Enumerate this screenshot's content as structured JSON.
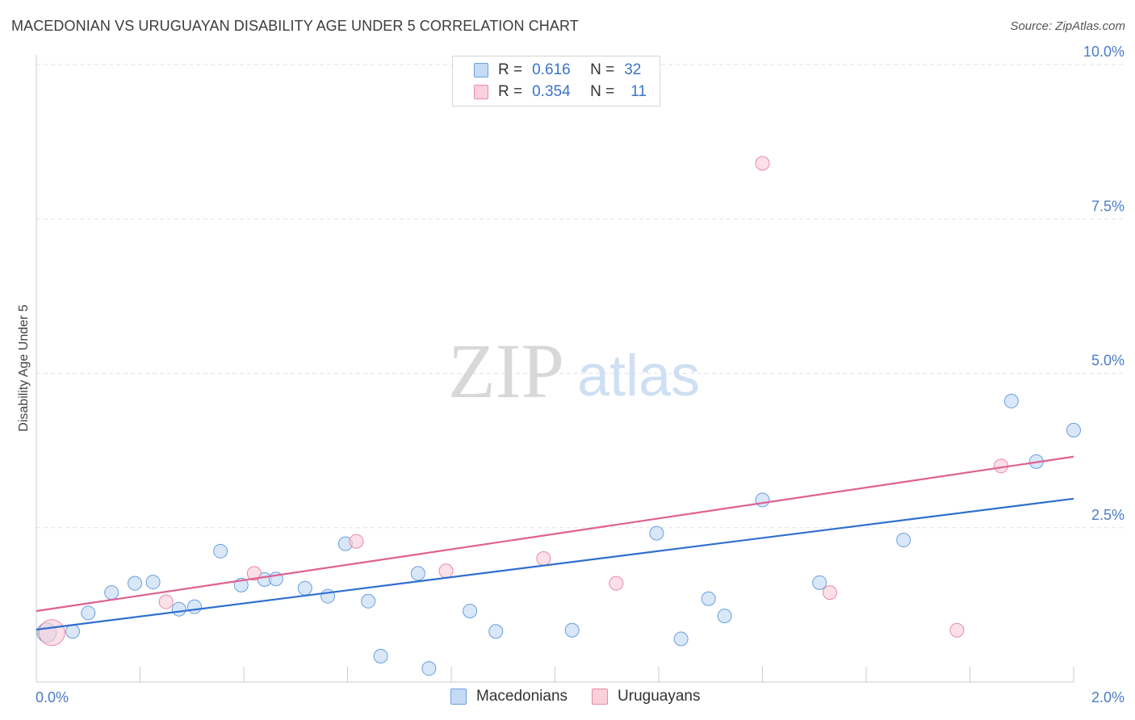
{
  "header": {
    "title": "MACEDONIAN VS URUGUAYAN DISABILITY AGE UNDER 5 CORRELATION CHART",
    "source": "Source: ZipAtlas.com"
  },
  "watermark": {
    "zip": "ZIP",
    "atlas": "atlas"
  },
  "legend": {
    "rows": [
      {
        "r_label": "R =",
        "r_value": "0.616",
        "n_label": "N =",
        "n_value": "32",
        "color": "#a8c8f0",
        "border": "#6a9fe0"
      },
      {
        "r_label": "R =",
        "r_value": "0.354",
        "n_label": "N =",
        "n_value": "11",
        "color": "#f8c0d0",
        "border": "#e88aa8"
      }
    ]
  },
  "bottom_legend": {
    "items": [
      {
        "label": "Macedonians",
        "color": "#a8c8f0",
        "border": "#6a9fe0"
      },
      {
        "label": "Uruguayans",
        "color": "#f8c0d0",
        "border": "#e88aa8"
      }
    ]
  },
  "chart_data": {
    "type": "scatter",
    "title": "MACEDONIAN VS URUGUAYAN DISABILITY AGE UNDER 5 CORRELATION CHART",
    "xlabel": "",
    "ylabel": "Disability Age Under 5",
    "xlim": [
      0,
      2.0
    ],
    "ylim": [
      0,
      10.0
    ],
    "x_tick_labels": [
      "0.0%",
      "2.0%"
    ],
    "y_ticks": [
      2.5,
      5.0,
      7.5,
      10.0
    ],
    "y_tick_labels": [
      "2.5%",
      "5.0%",
      "7.5%",
      "10.0%"
    ],
    "grid": "horizontal dashed",
    "legend_position": "top-center",
    "series": [
      {
        "name": "Macedonians",
        "color": "#6a9fe0",
        "fill": "#c5daf5",
        "trend_color": "#2f6fd0",
        "trend": [
          [
            0.0,
            0.85
          ],
          [
            2.0,
            2.97
          ]
        ],
        "points": [
          [
            0.02,
            0.8
          ],
          [
            0.07,
            0.82
          ],
          [
            0.1,
            1.12
          ],
          [
            0.145,
            1.45
          ],
          [
            0.19,
            1.6
          ],
          [
            0.225,
            1.62
          ],
          [
            0.275,
            1.18
          ],
          [
            0.305,
            1.22
          ],
          [
            0.355,
            2.12
          ],
          [
            0.395,
            1.57
          ],
          [
            0.44,
            1.66
          ],
          [
            0.462,
            1.67
          ],
          [
            0.518,
            1.52
          ],
          [
            0.562,
            1.39
          ],
          [
            0.596,
            2.24
          ],
          [
            0.64,
            1.31
          ],
          [
            0.664,
            0.42
          ],
          [
            0.736,
            1.76
          ],
          [
            0.757,
            0.22
          ],
          [
            0.836,
            1.15
          ],
          [
            0.886,
            0.82
          ],
          [
            1.033,
            0.84
          ],
          [
            1.196,
            2.41
          ],
          [
            1.243,
            0.7
          ],
          [
            1.296,
            1.35
          ],
          [
            1.327,
            1.07
          ],
          [
            1.4,
            2.95
          ],
          [
            1.51,
            1.61
          ],
          [
            1.672,
            2.3
          ],
          [
            1.88,
            4.55
          ],
          [
            1.928,
            3.57
          ],
          [
            2.0,
            4.08
          ]
        ]
      },
      {
        "name": "Uruguayans",
        "color": "#e88aa8",
        "fill": "#f9d0dc",
        "trend_color": "#e06090",
        "trend": [
          [
            0.0,
            1.15
          ],
          [
            2.0,
            3.65
          ]
        ],
        "points": [
          [
            0.03,
            0.8
          ],
          [
            0.25,
            1.3
          ],
          [
            0.42,
            1.76
          ],
          [
            0.617,
            2.28
          ],
          [
            0.79,
            1.8
          ],
          [
            0.978,
            2.0
          ],
          [
            1.118,
            1.6
          ],
          [
            1.4,
            8.4
          ],
          [
            1.53,
            1.45
          ],
          [
            1.775,
            0.84
          ],
          [
            1.86,
            3.5
          ]
        ]
      }
    ]
  }
}
